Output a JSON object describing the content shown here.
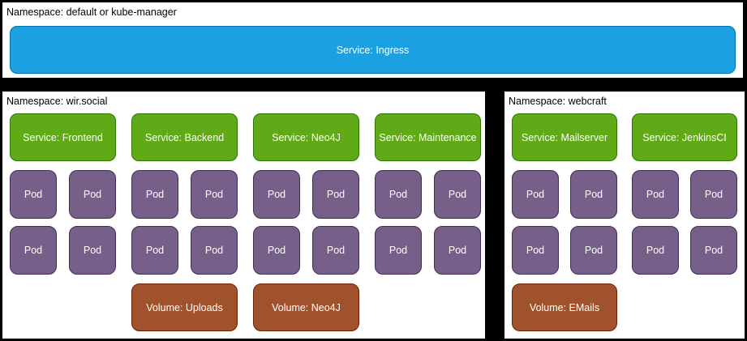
{
  "colors": {
    "canvas_background": "#000000",
    "namespace_fill": "#ffffff",
    "ingress_fill": "#1ba1e2",
    "ingress_stroke": "#006eaf",
    "service_fill": "#60a917",
    "service_stroke": "#2d7600",
    "pod_fill": "#76608a",
    "pod_stroke": "#432d57",
    "volume_fill": "#a0522d",
    "volume_stroke": "#6d1f00",
    "node_text": "#ffffff",
    "label_text": "#000000"
  },
  "namespaces": {
    "default_kube": {
      "label": "Namespace: default or kube-manager",
      "service": "Service: Ingress"
    },
    "wir_social": {
      "label": "Namespace: wir.social",
      "columns": [
        {
          "service": "Service: Frontend",
          "pods": [
            "Pod",
            "Pod",
            "Pod",
            "Pod"
          ]
        },
        {
          "service": "Service: Backend",
          "pods": [
            "Pod",
            "Pod",
            "Pod",
            "Pod"
          ],
          "volume": "Volume: Uploads"
        },
        {
          "service": "Service: Neo4J",
          "pods": [
            "Pod",
            "Pod",
            "Pod",
            "Pod"
          ],
          "volume": "Volume: Neo4J"
        },
        {
          "service": "Service: Maintenance",
          "pods": [
            "Pod",
            "Pod",
            "Pod",
            "Pod"
          ]
        }
      ]
    },
    "webcraft": {
      "label": "Namespace: webcraft",
      "columns": [
        {
          "service": "Service: Mailserver",
          "pods": [
            "Pod",
            "Pod",
            "Pod",
            "Pod"
          ],
          "volume": "Volume: EMails"
        },
        {
          "service": "Service: JenkinsCI",
          "pods": [
            "Pod",
            "Pod",
            "Pod",
            "Pod"
          ]
        }
      ]
    }
  }
}
